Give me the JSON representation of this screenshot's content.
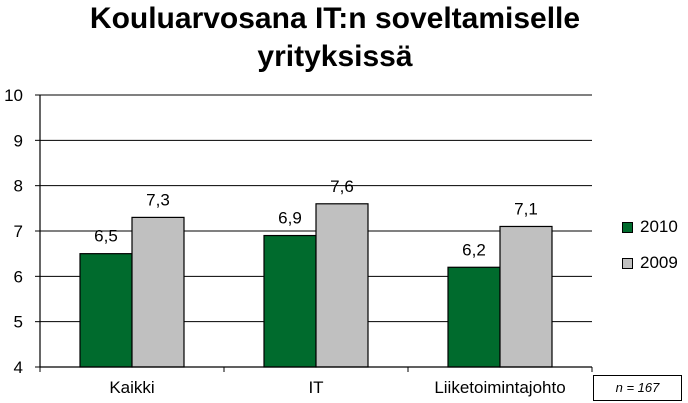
{
  "chart_data": {
    "type": "bar",
    "title": "Kouluarvosana IT:n soveltamiselle yrityksissä",
    "categories": [
      "Kaikki",
      "IT",
      "Liiketoimintajohto"
    ],
    "series": [
      {
        "name": "2010",
        "color": "#006b2d",
        "values": [
          6.5,
          6.9,
          6.2
        ],
        "labels": [
          "6,5",
          "6,9",
          "6,2"
        ]
      },
      {
        "name": "2009",
        "color": "#c0c0c0",
        "values": [
          7.3,
          7.6,
          7.1
        ],
        "labels": [
          "7,3",
          "7,6",
          "7,1"
        ]
      }
    ],
    "ylim": [
      4,
      10
    ],
    "yticks": [
      4,
      5,
      6,
      7,
      8,
      9,
      10
    ],
    "grid": true,
    "legend_position": "right"
  },
  "note": "n = 167"
}
